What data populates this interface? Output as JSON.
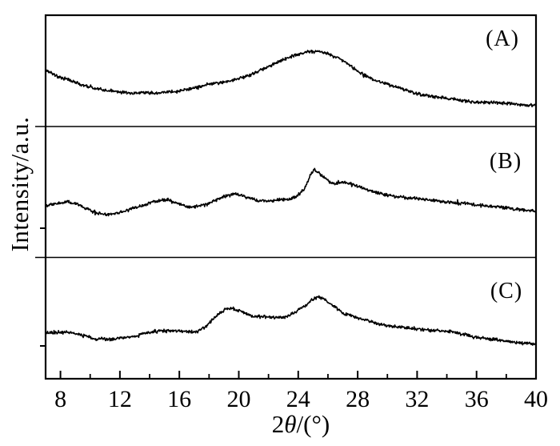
{
  "figure": {
    "background": "#ffffff",
    "axis_color": "#000000",
    "y_label": "Intensity/a.u.",
    "x_label_prefix": "2",
    "x_label_theta": "θ",
    "x_label_suffix": "/(°)"
  },
  "chart_data": {
    "type": "line",
    "title": "",
    "xlabel": "2θ/(°)",
    "ylabel": "Intensity/a.u.",
    "xlim": [
      7,
      40
    ],
    "x_ticks_major": [
      8,
      12,
      16,
      20,
      24,
      28,
      32,
      36,
      40
    ],
    "x_ticks_minor": [
      10,
      14,
      18,
      22,
      26,
      30,
      34,
      38
    ],
    "grid": false,
    "legend": false,
    "line_color": "#000000",
    "background": "#ffffff",
    "y_units": "arbitrary units, normalized 0-1 within each stacked panel",
    "layout_hint": "three vertically stacked panels sharing one x-axis, noisy black traces",
    "panels": [
      {
        "label": "(A)",
        "peaks_2theta": [
          25
        ],
        "x": [
          7,
          7.5,
          8,
          9,
          10,
          11,
          12,
          13,
          14,
          15,
          16,
          17,
          18,
          19,
          20,
          21,
          22,
          23,
          24,
          24.8,
          25.6,
          26.3,
          27,
          28,
          29,
          30,
          31,
          32,
          33,
          34,
          35,
          36,
          37,
          38,
          39,
          40
        ],
        "y": [
          0.507,
          0.471,
          0.443,
          0.393,
          0.35,
          0.321,
          0.307,
          0.3,
          0.3,
          0.307,
          0.321,
          0.343,
          0.379,
          0.4,
          0.429,
          0.479,
          0.536,
          0.6,
          0.65,
          0.671,
          0.664,
          0.636,
          0.593,
          0.5,
          0.429,
          0.379,
          0.336,
          0.3,
          0.271,
          0.25,
          0.236,
          0.221,
          0.214,
          0.207,
          0.2,
          0.193
        ]
      },
      {
        "label": "(B)",
        "peaks_2theta": [
          8.7,
          14.8,
          19.7,
          25
        ],
        "x": [
          7,
          7.8,
          8.7,
          9.6,
          10.6,
          11.4,
          12.4,
          13.6,
          14.8,
          15.8,
          16.8,
          17.8,
          18.8,
          19.7,
          20.6,
          21.6,
          22.6,
          23.6,
          24.4,
          25,
          25.7,
          26.4,
          27,
          28,
          29,
          30,
          32,
          34,
          36,
          38,
          40
        ],
        "y": [
          0.39,
          0.409,
          0.421,
          0.384,
          0.341,
          0.335,
          0.36,
          0.402,
          0.439,
          0.415,
          0.384,
          0.409,
          0.457,
          0.488,
          0.457,
          0.433,
          0.439,
          0.451,
          0.524,
          0.659,
          0.616,
          0.567,
          0.573,
          0.543,
          0.506,
          0.476,
          0.445,
          0.421,
          0.402,
          0.378,
          0.354
        ]
      },
      {
        "label": "(C)",
        "peaks_2theta": [
          14.8,
          19,
          25.3
        ],
        "x": [
          7,
          8,
          9,
          10,
          10.8,
          11.5,
          12.5,
          13.5,
          14.8,
          15.6,
          16.4,
          17.2,
          18,
          18.7,
          19.3,
          20,
          20.9,
          21.8,
          22.7,
          23.5,
          24.3,
          25.3,
          26.1,
          27,
          28,
          29,
          30,
          31,
          32,
          33,
          34,
          35,
          36,
          37,
          38,
          39,
          40
        ],
        "y": [
          0.382,
          0.388,
          0.375,
          0.342,
          0.329,
          0.329,
          0.342,
          0.368,
          0.395,
          0.401,
          0.395,
          0.388,
          0.454,
          0.539,
          0.579,
          0.559,
          0.513,
          0.507,
          0.507,
          0.526,
          0.592,
          0.671,
          0.625,
          0.546,
          0.5,
          0.467,
          0.441,
          0.428,
          0.414,
          0.401,
          0.395,
          0.368,
          0.342,
          0.329,
          0.309,
          0.296,
          0.283
        ]
      }
    ]
  }
}
